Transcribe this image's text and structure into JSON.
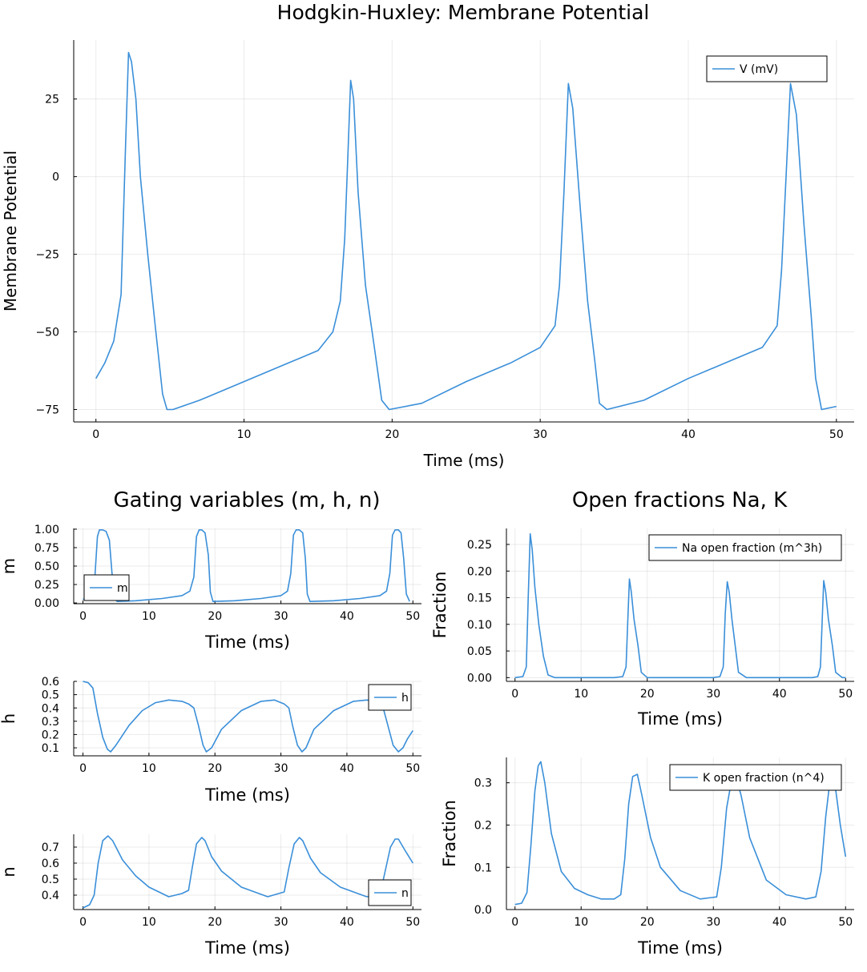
{
  "chart_data": [
    {
      "id": "vm",
      "type": "line",
      "title": "Hodgkin-Huxley: Membrane Potential",
      "xlabel": "Time (ms)",
      "ylabel": "Membrane Potential",
      "xlim": [
        -1.5,
        51.2
      ],
      "ylim": [
        -79,
        44
      ],
      "xticks": [
        0,
        10,
        20,
        30,
        40,
        50
      ],
      "xtick_labels": [
        "0",
        "10",
        "20",
        "30",
        "40",
        "50"
      ],
      "yticks": [
        -75,
        -50,
        -25,
        0,
        25
      ],
      "ytick_labels": [
        "−75",
        "−50",
        "−25",
        "0",
        "25"
      ],
      "grid": true,
      "legend_position": "top-right",
      "series": [
        {
          "name": "V (mV)",
          "color": "#3a8fd9",
          "x": [
            0,
            0.6,
            1.2,
            1.7,
            2.0,
            2.2,
            2.4,
            2.7,
            3.0,
            3.5,
            4.0,
            4.5,
            4.8,
            5.2,
            7,
            10,
            13,
            15,
            16,
            16.5,
            16.8,
            17.0,
            17.2,
            17.4,
            17.7,
            18.2,
            18.8,
            19.3,
            19.8,
            22,
            25,
            28,
            30,
            31,
            31.3,
            31.6,
            31.9,
            32.2,
            32.7,
            33.2,
            33.7,
            34.0,
            34.5,
            37,
            40,
            43,
            45,
            46,
            46.3,
            46.6,
            46.9,
            47.3,
            47.8,
            48.3,
            48.6,
            49.0,
            50
          ],
          "y": [
            -65,
            -60,
            -53,
            -38,
            10,
            40,
            37,
            25,
            0,
            -25,
            -48,
            -70,
            -75,
            -75,
            -72,
            -66,
            -60,
            -56,
            -50,
            -40,
            -20,
            5,
            31,
            25,
            -5,
            -35,
            -55,
            -72,
            -75,
            -73,
            -66,
            -60,
            -55,
            -48,
            -35,
            -5,
            30,
            22,
            -10,
            -40,
            -60,
            -73,
            -75,
            -72,
            -65,
            -59,
            -55,
            -48,
            -30,
            0,
            30,
            20,
            -15,
            -45,
            -65,
            -75,
            -74
          ]
        }
      ]
    },
    {
      "id": "m",
      "type": "line",
      "title": "Gating variables (m, h, n)",
      "xlabel": "Time (ms)",
      "ylabel": "m",
      "xlim": [
        -1.4,
        51.3
      ],
      "ylim": [
        -0.01,
        1.01
      ],
      "xticks": [
        0,
        10,
        20,
        30,
        40,
        50
      ],
      "xtick_labels": [
        "0",
        "10",
        "20",
        "30",
        "40",
        "50"
      ],
      "yticks": [
        0,
        0.25,
        0.5,
        0.75,
        1.0
      ],
      "ytick_labels": [
        "0.00",
        "0.25",
        "0.50",
        "0.75",
        "1.00"
      ],
      "grid": true,
      "legend_position": "bottom-left",
      "series": [
        {
          "name": "m",
          "color": "#3a8fd9",
          "x": [
            0,
            1,
            1.8,
            2.2,
            2.5,
            3.0,
            3.5,
            4.0,
            4.4,
            4.8,
            5.2,
            8,
            12,
            15,
            16.2,
            16.8,
            17.2,
            17.6,
            18.0,
            18.5,
            19.0,
            19.3,
            19.7,
            23,
            27,
            30,
            31.0,
            31.5,
            31.9,
            32.3,
            32.8,
            33.3,
            33.7,
            34.0,
            34.4,
            38,
            42,
            45,
            46.0,
            46.5,
            46.9,
            47.3,
            47.8,
            48.2,
            48.6,
            49.0,
            49.5
          ],
          "y": [
            0.05,
            0.07,
            0.35,
            0.9,
            0.99,
            0.99,
            0.97,
            0.85,
            0.4,
            0.05,
            0.02,
            0.03,
            0.06,
            0.1,
            0.16,
            0.35,
            0.9,
            0.99,
            0.99,
            0.95,
            0.65,
            0.15,
            0.02,
            0.03,
            0.06,
            0.1,
            0.16,
            0.4,
            0.92,
            0.99,
            0.99,
            0.95,
            0.6,
            0.12,
            0.02,
            0.03,
            0.06,
            0.1,
            0.16,
            0.4,
            0.92,
            0.99,
            0.99,
            0.95,
            0.6,
            0.12,
            0.02
          ]
        }
      ]
    },
    {
      "id": "h",
      "type": "line",
      "title": "",
      "xlabel": "Time (ms)",
      "ylabel": "h",
      "xlim": [
        -1.4,
        51.3
      ],
      "ylim": [
        0.04,
        0.6
      ],
      "xticks": [
        0,
        10,
        20,
        30,
        40,
        50
      ],
      "xtick_labels": [
        "0",
        "10",
        "20",
        "30",
        "40",
        "50"
      ],
      "yticks": [
        0.1,
        0.2,
        0.3,
        0.4,
        0.5,
        0.6
      ],
      "ytick_labels": [
        "0.1",
        "0.2",
        "0.3",
        "0.4",
        "0.5",
        "0.6"
      ],
      "grid": true,
      "legend_position": "top-right",
      "series": [
        {
          "name": "h",
          "color": "#3a8fd9",
          "x": [
            0,
            0.8,
            1.5,
            2.2,
            3.0,
            3.7,
            4.2,
            5,
            7,
            9,
            11,
            13,
            15,
            16,
            16.8,
            17.5,
            18.2,
            18.7,
            19.5,
            21,
            24,
            27,
            29,
            30.5,
            31.2,
            31.8,
            32.5,
            33.2,
            33.8,
            35,
            38,
            41,
            43,
            44.5,
            45.5,
            46.2,
            47.0,
            47.8,
            48.5,
            49.2,
            50
          ],
          "y": [
            0.6,
            0.59,
            0.55,
            0.36,
            0.18,
            0.09,
            0.07,
            0.12,
            0.27,
            0.38,
            0.44,
            0.46,
            0.45,
            0.43,
            0.4,
            0.27,
            0.12,
            0.07,
            0.1,
            0.24,
            0.38,
            0.45,
            0.46,
            0.43,
            0.4,
            0.26,
            0.12,
            0.07,
            0.1,
            0.24,
            0.38,
            0.45,
            0.46,
            0.45,
            0.4,
            0.27,
            0.12,
            0.07,
            0.1,
            0.17,
            0.23
          ]
        }
      ]
    },
    {
      "id": "n",
      "type": "line",
      "title": "",
      "xlabel": "Time (ms)",
      "ylabel": "n",
      "xlim": [
        -1.4,
        51.3
      ],
      "ylim": [
        0.31,
        0.78
      ],
      "xticks": [
        0,
        10,
        20,
        30,
        40,
        50
      ],
      "xtick_labels": [
        "0",
        "10",
        "20",
        "30",
        "40",
        "50"
      ],
      "yticks": [
        0.4,
        0.5,
        0.6,
        0.7
      ],
      "ytick_labels": [
        "0.4",
        "0.5",
        "0.6",
        "0.7"
      ],
      "grid": true,
      "legend_position": "bottom-right",
      "series": [
        {
          "name": "n",
          "color": "#3a8fd9",
          "x": [
            0,
            1,
            1.7,
            2.3,
            3.0,
            3.8,
            4.5,
            6,
            8,
            10,
            13,
            15,
            16,
            16.6,
            17.2,
            18.0,
            18.5,
            19.5,
            21,
            24,
            28,
            30.5,
            31.2,
            32.0,
            32.8,
            33.3,
            34.5,
            36,
            39,
            43,
            45.0,
            45.8,
            46.6,
            47.3,
            47.8,
            48.8,
            50
          ],
          "y": [
            0.32,
            0.34,
            0.4,
            0.6,
            0.74,
            0.77,
            0.74,
            0.62,
            0.52,
            0.45,
            0.39,
            0.41,
            0.43,
            0.58,
            0.72,
            0.76,
            0.74,
            0.64,
            0.55,
            0.45,
            0.39,
            0.42,
            0.57,
            0.72,
            0.76,
            0.74,
            0.63,
            0.54,
            0.45,
            0.39,
            0.4,
            0.55,
            0.7,
            0.75,
            0.75,
            0.68,
            0.6
          ]
        }
      ]
    },
    {
      "id": "na",
      "type": "line",
      "title": "Open fractions Na, K",
      "xlabel": "Time (ms)",
      "ylabel": "Fraction",
      "xlim": [
        -1.3,
        51.3
      ],
      "ylim": [
        -0.007,
        0.28
      ],
      "xticks": [
        0,
        10,
        20,
        30,
        40,
        50
      ],
      "xtick_labels": [
        "0",
        "10",
        "20",
        "30",
        "40",
        "50"
      ],
      "yticks": [
        0,
        0.05,
        0.1,
        0.15,
        0.2,
        0.25
      ],
      "ytick_labels": [
        "0.00",
        "0.05",
        "0.10",
        "0.15",
        "0.20",
        "0.25"
      ],
      "grid": true,
      "legend_position": "top-right",
      "series": [
        {
          "name": "Na open fraction (m^3h)",
          "color": "#3a8fd9",
          "x": [
            0,
            1.2,
            1.7,
            2.0,
            2.3,
            2.6,
            3.0,
            3.6,
            4.3,
            5.0,
            6,
            10,
            15,
            16.3,
            16.8,
            17.1,
            17.3,
            17.6,
            18.0,
            18.6,
            19.1,
            20,
            25,
            30,
            31.0,
            31.5,
            31.8,
            32.1,
            32.4,
            32.8,
            33.3,
            33.8,
            35,
            40,
            45,
            45.8,
            46.2,
            46.5,
            46.7,
            47.0,
            47.4,
            48.0,
            48.5,
            49.5,
            50
          ],
          "y": [
            0,
            0.002,
            0.02,
            0.15,
            0.27,
            0.24,
            0.17,
            0.1,
            0.04,
            0.005,
            0,
            0,
            0,
            0.002,
            0.02,
            0.12,
            0.185,
            0.16,
            0.11,
            0.06,
            0.01,
            0,
            0,
            0,
            0.002,
            0.02,
            0.12,
            0.18,
            0.16,
            0.11,
            0.06,
            0.01,
            0,
            0,
            0,
            0.002,
            0.02,
            0.12,
            0.182,
            0.16,
            0.11,
            0.06,
            0.01,
            0,
            0
          ]
        }
      ]
    },
    {
      "id": "k",
      "type": "line",
      "title": "",
      "xlabel": "Time (ms)",
      "ylabel": "Fraction",
      "xlim": [
        -1.3,
        51.3
      ],
      "ylim": [
        0,
        0.36
      ],
      "xticks": [
        0,
        10,
        20,
        30,
        40,
        50
      ],
      "xtick_labels": [
        "0",
        "10",
        "20",
        "30",
        "40",
        "50"
      ],
      "yticks": [
        0,
        0.1,
        0.2,
        0.3
      ],
      "ytick_labels": [
        "0.0",
        "0.1",
        "0.2",
        "0.3"
      ],
      "grid": true,
      "legend_position": "top-right",
      "series": [
        {
          "name": "K open fraction (n^4)",
          "color": "#3a8fd9",
          "x": [
            0,
            1,
            1.8,
            2.4,
            3.0,
            3.5,
            3.9,
            4.5,
            5.5,
            7,
            9,
            11,
            13,
            15,
            16.0,
            16.6,
            17.2,
            17.8,
            18.5,
            19.2,
            20.5,
            22,
            25,
            28,
            30.5,
            31.2,
            32.0,
            32.8,
            33.3,
            34.2,
            35.5,
            38,
            41,
            44,
            45.5,
            46.3,
            47.0,
            47.6,
            48.2,
            49.2,
            50
          ],
          "y": [
            0.012,
            0.015,
            0.04,
            0.15,
            0.28,
            0.34,
            0.35,
            0.3,
            0.18,
            0.09,
            0.05,
            0.035,
            0.025,
            0.025,
            0.035,
            0.12,
            0.25,
            0.315,
            0.32,
            0.27,
            0.17,
            0.1,
            0.045,
            0.025,
            0.03,
            0.1,
            0.24,
            0.31,
            0.32,
            0.27,
            0.17,
            0.07,
            0.035,
            0.025,
            0.03,
            0.09,
            0.22,
            0.3,
            0.32,
            0.2,
            0.125
          ]
        }
      ]
    }
  ]
}
